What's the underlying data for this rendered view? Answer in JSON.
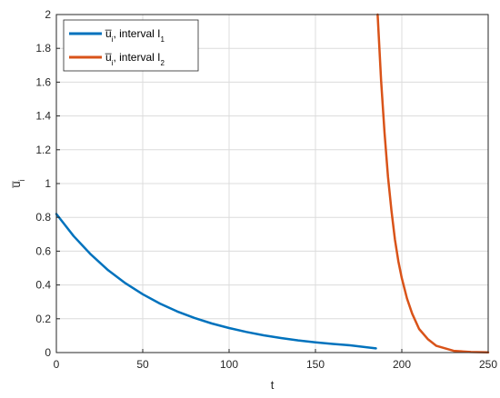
{
  "chart_data": {
    "type": "line",
    "xlabel": "t",
    "ylabel": "u̅",
    "ylabel_sub": "i",
    "xlim": [
      0,
      250
    ],
    "ylim": [
      0,
      2
    ],
    "xticks": [
      0,
      50,
      100,
      150,
      200,
      250
    ],
    "yticks": [
      0,
      0.2,
      0.4,
      0.6,
      0.8,
      1,
      1.2,
      1.4,
      1.6,
      1.8,
      2
    ],
    "grid": true,
    "legend_position": "top-left",
    "series": [
      {
        "name": "u̅",
        "name_sub": "i",
        "name_suffix": ", interval I",
        "name_suffix_sub": "1",
        "color": "#0072BD",
        "x": [
          0,
          10,
          20,
          30,
          40,
          50,
          60,
          70,
          80,
          90,
          100,
          110,
          120,
          130,
          140,
          150,
          160,
          170,
          185
        ],
        "y": [
          0.82,
          0.689,
          0.58,
          0.487,
          0.41,
          0.345,
          0.29,
          0.243,
          0.205,
          0.172,
          0.145,
          0.122,
          0.102,
          0.086,
          0.072,
          0.061,
          0.051,
          0.043,
          0.025
        ]
      },
      {
        "name": "u̅",
        "name_sub": "i",
        "name_suffix": ", interval I",
        "name_suffix_sub": "2",
        "color": "#D95319",
        "x": [
          186,
          188,
          190,
          192,
          194,
          196,
          198,
          200,
          203,
          206,
          210,
          215,
          220,
          230,
          240,
          250
        ],
        "y": [
          2.0,
          1.61,
          1.3,
          1.04,
          0.84,
          0.67,
          0.54,
          0.44,
          0.32,
          0.23,
          0.14,
          0.08,
          0.04,
          0.01,
          0.003,
          0.001
        ]
      }
    ]
  }
}
